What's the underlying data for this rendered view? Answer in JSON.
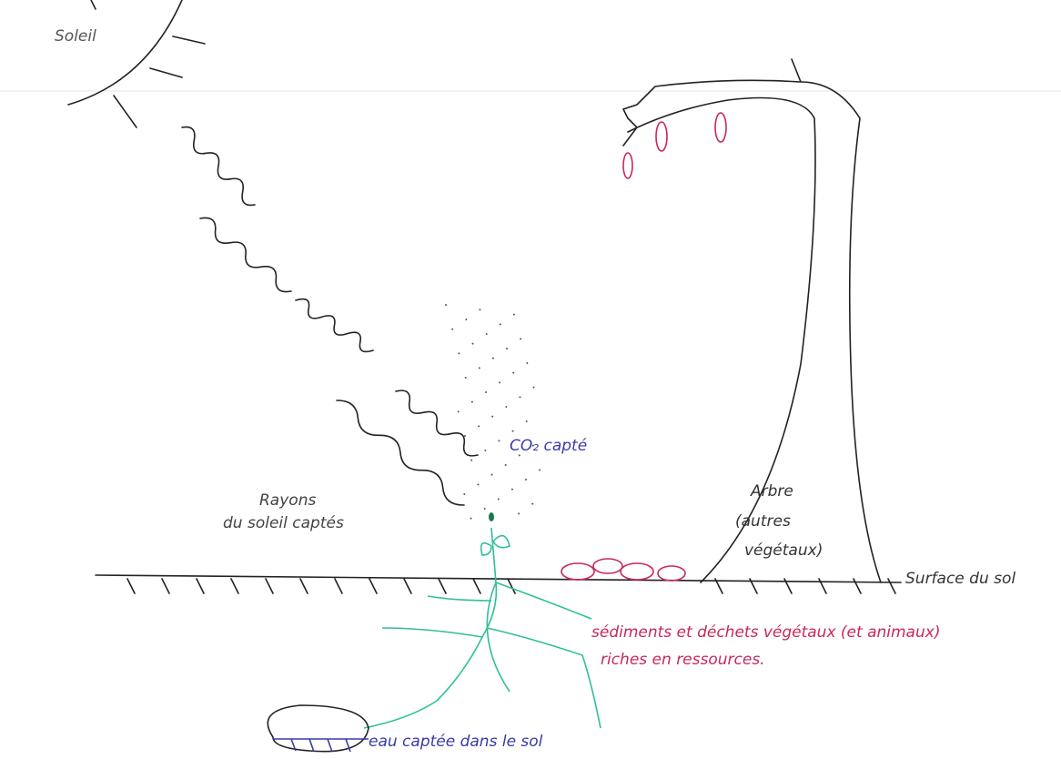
{
  "labels": {
    "sun": "Soleil",
    "rays": [
      "Rayons",
      "du soleil captés"
    ],
    "co2": "CO₂ capté",
    "tree": [
      "Arbre",
      "(autres",
      "végétaux)"
    ],
    "ground": "Surface du sol",
    "sediments": [
      "sédiments et déchets végétaux (et animaux)",
      "riches en ressources."
    ],
    "water": "eau captée dans le sol"
  }
}
